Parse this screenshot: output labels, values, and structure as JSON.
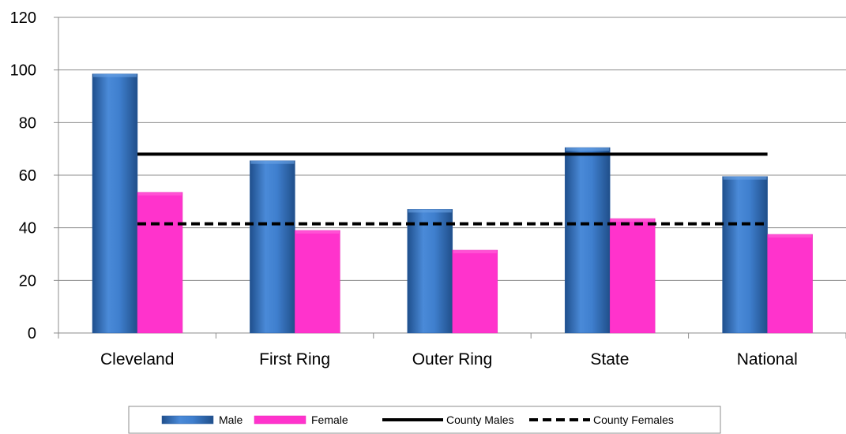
{
  "chart_data": {
    "type": "bar",
    "categories": [
      "Cleveland",
      "First Ring",
      "Outer Ring",
      "State",
      "National"
    ],
    "series": [
      {
        "name": "Male",
        "values": [
          98.5,
          65.5,
          47,
          70.5,
          59.5
        ],
        "color": "#3f7fce"
      },
      {
        "name": "Female",
        "values": [
          53.5,
          39,
          31.5,
          43.5,
          37.5
        ],
        "color": "#ff33cc"
      }
    ],
    "reference_lines": [
      {
        "name": "County Males",
        "value": 68,
        "color": "#000000",
        "style": "solid"
      },
      {
        "name": "County Females",
        "value": 41.5,
        "color": "#000000",
        "style": "dashed"
      }
    ],
    "ylim": [
      0,
      120
    ],
    "yticks": [
      "0",
      "20",
      "40",
      "60",
      "80",
      "100",
      "120"
    ],
    "grid": true,
    "legend_position": "bottom",
    "title": "",
    "xlabel": "",
    "ylabel": ""
  }
}
